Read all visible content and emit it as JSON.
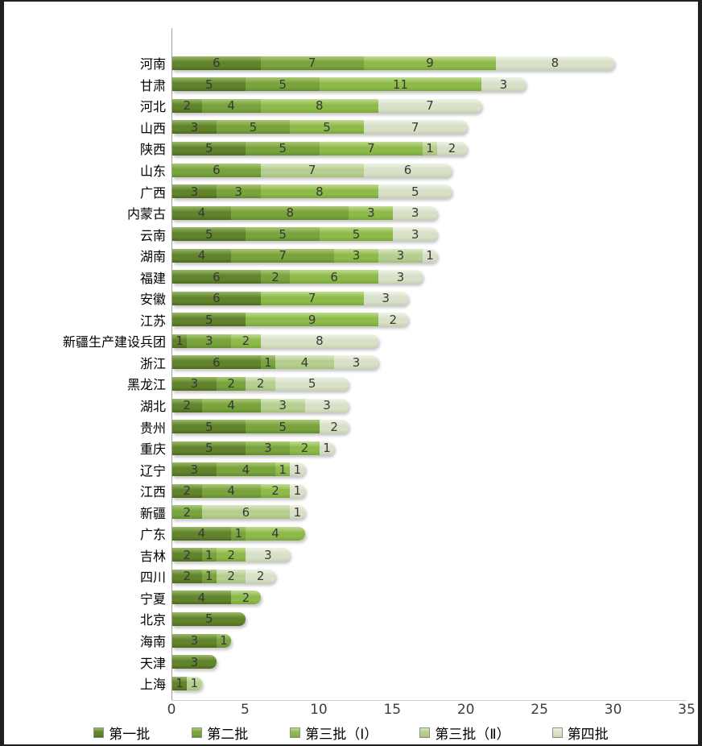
{
  "chart_data": {
    "type": "bar",
    "orientation": "horizontal",
    "stacked": true,
    "title": "",
    "xlabel": "",
    "ylabel": "",
    "grid": false,
    "legend_position": "bottom",
    "x_axis": {
      "min": 0,
      "max": 35,
      "ticks": [
        0,
        5,
        10,
        15,
        20,
        25,
        30,
        35
      ]
    },
    "series": [
      {
        "name": "第一批",
        "color": {
          "base": "#61832b",
          "light": "#9ab96a",
          "dark": "#4f6a1f"
        }
      },
      {
        "name": "第二批",
        "color": {
          "base": "#79a33d",
          "light": "#aac877",
          "dark": "#648c30"
        }
      },
      {
        "name": "第三批（Ⅰ）",
        "color": {
          "base": "#8eba4b",
          "light": "#c0dc92",
          "dark": "#7ba63c"
        }
      },
      {
        "name": "第三批（Ⅱ）",
        "color": {
          "base": "#b6ce90",
          "light": "#dbe8c2",
          "dark": "#a3bf7a"
        }
      },
      {
        "name": "第四批",
        "color": {
          "base": "#d8e1c8",
          "light": "#eef3e5",
          "dark": "#c5d2b1"
        }
      }
    ],
    "rows": [
      {
        "label": "河南",
        "values": [
          6,
          7,
          9,
          0,
          8
        ]
      },
      {
        "label": "甘肃",
        "values": [
          5,
          5,
          11,
          0,
          3
        ]
      },
      {
        "label": "河北",
        "values": [
          2,
          4,
          8,
          0,
          7
        ]
      },
      {
        "label": "山西",
        "values": [
          3,
          5,
          5,
          0,
          7
        ]
      },
      {
        "label": "陕西",
        "values": [
          5,
          5,
          7,
          1,
          2
        ]
      },
      {
        "label": "山东",
        "values": [
          0,
          6,
          0,
          7,
          6
        ]
      },
      {
        "label": "广西",
        "values": [
          3,
          3,
          8,
          0,
          5
        ]
      },
      {
        "label": "内蒙古",
        "values": [
          4,
          8,
          3,
          0,
          3
        ]
      },
      {
        "label": "云南",
        "values": [
          5,
          5,
          5,
          0,
          3
        ]
      },
      {
        "label": "湖南",
        "values": [
          4,
          7,
          3,
          3,
          1
        ]
      },
      {
        "label": "福建",
        "values": [
          6,
          2,
          6,
          0,
          3
        ]
      },
      {
        "label": "安徽",
        "values": [
          6,
          0,
          7,
          0,
          3
        ]
      },
      {
        "label": "江苏",
        "values": [
          5,
          0,
          9,
          0,
          2
        ]
      },
      {
        "label": "新疆生产建设兵团",
        "values": [
          1,
          3,
          2,
          0,
          8
        ]
      },
      {
        "label": "浙江",
        "values": [
          6,
          1,
          0,
          4,
          3
        ]
      },
      {
        "label": "黑龙江",
        "values": [
          3,
          2,
          0,
          2,
          5
        ]
      },
      {
        "label": "湖北",
        "values": [
          2,
          4,
          0,
          3,
          3
        ]
      },
      {
        "label": "贵州",
        "values": [
          5,
          5,
          0,
          0,
          2
        ]
      },
      {
        "label": "重庆",
        "values": [
          5,
          3,
          2,
          0,
          1
        ]
      },
      {
        "label": "辽宁",
        "values": [
          3,
          4,
          1,
          0,
          1
        ]
      },
      {
        "label": "江西",
        "values": [
          2,
          4,
          2,
          0,
          1
        ]
      },
      {
        "label": "新疆",
        "values": [
          0,
          2,
          0,
          6,
          1
        ]
      },
      {
        "label": "广东",
        "values": [
          4,
          1,
          4,
          0,
          0
        ]
      },
      {
        "label": "吉林",
        "values": [
          2,
          1,
          2,
          0,
          3
        ]
      },
      {
        "label": "四川",
        "values": [
          2,
          1,
          0,
          2,
          2
        ]
      },
      {
        "label": "宁夏",
        "values": [
          4,
          0,
          2,
          0,
          0
        ]
      },
      {
        "label": "北京",
        "values": [
          5,
          0,
          0,
          0,
          0
        ]
      },
      {
        "label": "海南",
        "values": [
          3,
          1,
          0,
          0,
          0
        ]
      },
      {
        "label": "天津",
        "values": [
          3,
          0,
          0,
          0,
          0
        ]
      },
      {
        "label": "上海",
        "values": [
          1,
          0,
          0,
          1,
          0
        ]
      }
    ]
  }
}
